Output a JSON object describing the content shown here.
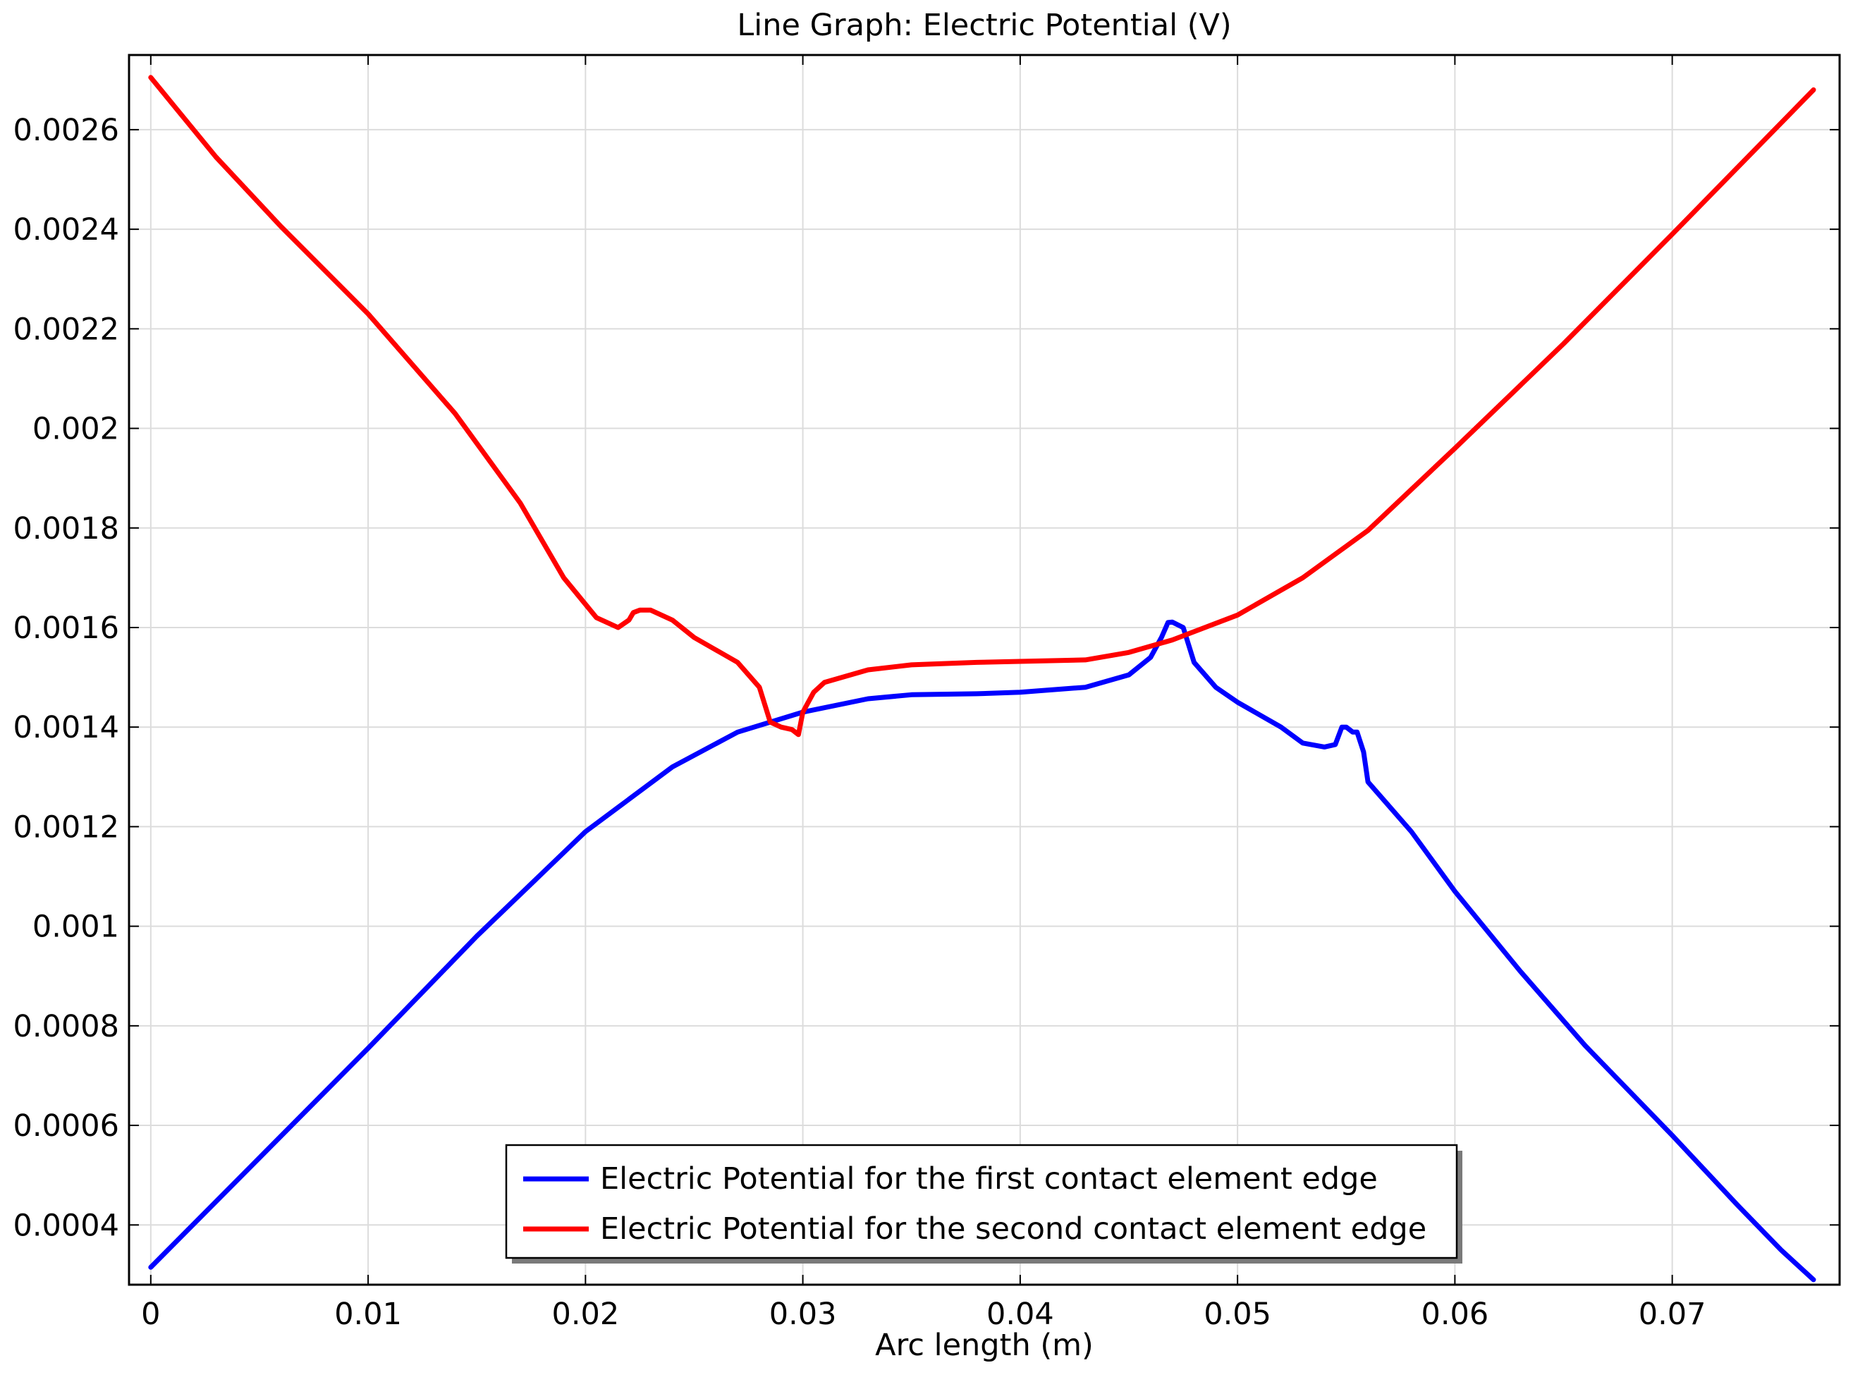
{
  "chart_data": {
    "type": "line",
    "title": "Line Graph: Electric Potential (V)",
    "xlabel": "Arc length (m)",
    "ylabel": "",
    "xlim": [
      -0.001,
      0.0777
    ],
    "ylim": [
      0.00028,
      0.00275
    ],
    "x_ticks": [
      0,
      0.01,
      0.02,
      0.03,
      0.04,
      0.05,
      0.06,
      0.07
    ],
    "x_tick_labels": [
      "0",
      "0.01",
      "0.02",
      "0.03",
      "0.04",
      "0.05",
      "0.06",
      "0.07"
    ],
    "y_ticks": [
      0.0004,
      0.0006,
      0.0008,
      0.001,
      0.0012,
      0.0014,
      0.0016,
      0.0018,
      0.002,
      0.0022,
      0.0024,
      0.0026
    ],
    "y_tick_labels": [
      "0.0004",
      "0.0006",
      "0.0008",
      "0.001",
      "0.0012",
      "0.0014",
      "0.0016",
      "0.0018",
      "0.002",
      "0.0022",
      "0.0024",
      "0.0026"
    ],
    "grid": true,
    "legend_position": "bottom-center",
    "series": [
      {
        "name": "Electric Potential for the first contact element edge",
        "color": "#0000ff",
        "x": [
          0,
          0.005,
          0.01,
          0.015,
          0.02,
          0.024,
          0.027,
          0.03,
          0.033,
          0.035,
          0.038,
          0.04,
          0.043,
          0.045,
          0.046,
          0.0465,
          0.0468,
          0.047,
          0.0475,
          0.048,
          0.049,
          0.05,
          0.052,
          0.053,
          0.054,
          0.0545,
          0.0548,
          0.055,
          0.0553,
          0.0555,
          0.0558,
          0.056,
          0.058,
          0.06,
          0.063,
          0.066,
          0.07,
          0.073,
          0.075,
          0.0765
        ],
        "y": [
          0.000315,
          0.000535,
          0.000755,
          0.00098,
          0.00119,
          0.00132,
          0.00139,
          0.00143,
          0.001457,
          0.001465,
          0.001467,
          0.00147,
          0.00148,
          0.001505,
          0.00154,
          0.00158,
          0.00161,
          0.001611,
          0.0016,
          0.00153,
          0.00148,
          0.00145,
          0.0014,
          0.001368,
          0.00136,
          0.001365,
          0.0014,
          0.0014,
          0.00139,
          0.00139,
          0.00135,
          0.00129,
          0.00119,
          0.00107,
          0.00091,
          0.00076,
          0.00058,
          0.00044,
          0.00035,
          0.00029
        ]
      },
      {
        "name": "Electric Potential for the second contact element edge",
        "color": "#ff0000",
        "x": [
          0,
          0.003,
          0.006,
          0.01,
          0.014,
          0.017,
          0.019,
          0.0205,
          0.021,
          0.0215,
          0.022,
          0.0222,
          0.0225,
          0.023,
          0.024,
          0.025,
          0.027,
          0.028,
          0.0285,
          0.029,
          0.0295,
          0.0298,
          0.03,
          0.0305,
          0.031,
          0.033,
          0.035,
          0.038,
          0.04,
          0.043,
          0.045,
          0.047,
          0.05,
          0.053,
          0.056,
          0.06,
          0.065,
          0.07,
          0.0765
        ],
        "y": [
          0.002705,
          0.002545,
          0.002405,
          0.00223,
          0.00203,
          0.00185,
          0.0017,
          0.00162,
          0.00161,
          0.0016,
          0.001615,
          0.00163,
          0.001635,
          0.001635,
          0.001615,
          0.00158,
          0.00153,
          0.00148,
          0.00141,
          0.0014,
          0.001395,
          0.001385,
          0.00143,
          0.00147,
          0.00149,
          0.001515,
          0.001525,
          0.00153,
          0.001532,
          0.001535,
          0.00155,
          0.001575,
          0.001625,
          0.0017,
          0.001795,
          0.00196,
          0.00217,
          0.00239,
          0.00268
        ]
      }
    ]
  }
}
